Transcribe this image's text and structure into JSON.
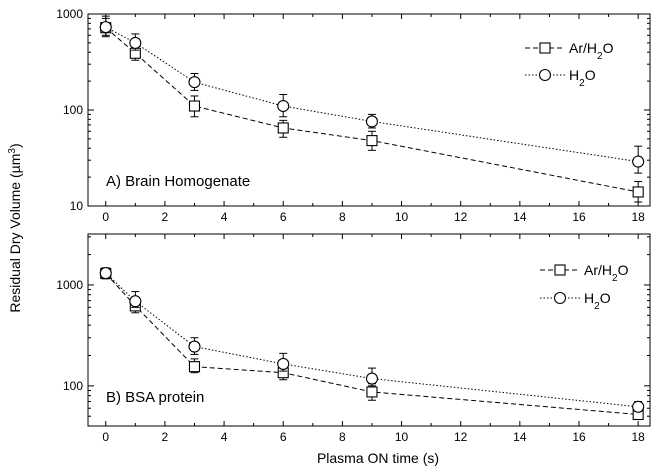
{
  "chart_data": [
    {
      "type": "line",
      "annotation": "A) Brain Homogenate",
      "x": [
        0,
        1,
        3,
        6,
        9,
        18
      ],
      "xlim": [
        -0.6,
        18.4
      ],
      "xticks": [
        0,
        2,
        4,
        6,
        8,
        10,
        12,
        14,
        16,
        18
      ],
      "yscale": "log",
      "ylim": [
        10,
        1000
      ],
      "yticks": [
        10,
        100,
        1000
      ],
      "series": [
        {
          "name": "Ar/H2O",
          "marker": "square",
          "dash": "dashed",
          "values": [
            720,
            390,
            110,
            65,
            48,
            14
          ],
          "err_low": [
            580,
            330,
            85,
            52,
            38,
            11
          ],
          "err_high": [
            950,
            450,
            140,
            78,
            60,
            18
          ]
        },
        {
          "name": "H2O",
          "marker": "circle",
          "dash": "dotted",
          "values": [
            730,
            500,
            195,
            110,
            76,
            29
          ],
          "err_low": [
            600,
            420,
            160,
            85,
            65,
            22
          ],
          "err_high": [
            900,
            620,
            240,
            145,
            90,
            42
          ]
        }
      ],
      "legend_placement": "top-right"
    },
    {
      "type": "line",
      "annotation": "B) BSA protein",
      "x": [
        0,
        1,
        3,
        6,
        9,
        18
      ],
      "xlim": [
        -0.6,
        18.4
      ],
      "xticks": [
        0,
        2,
        4,
        6,
        8,
        10,
        12,
        14,
        16,
        18
      ],
      "yscale": "log",
      "ylim": [
        40,
        3200
      ],
      "yticks": [
        100,
        1000
      ],
      "series": [
        {
          "name": "Ar/H2O",
          "marker": "square",
          "dash": "dashed",
          "values": [
            1300,
            620,
            155,
            135,
            87,
            52
          ],
          "err_low": [
            1150,
            530,
            135,
            115,
            72,
            47
          ],
          "err_high": [
            1450,
            760,
            185,
            170,
            105,
            58
          ]
        },
        {
          "name": "H2O",
          "marker": "circle",
          "dash": "dotted",
          "values": [
            1310,
            690,
            245,
            165,
            118,
            62
          ],
          "err_low": [
            1170,
            600,
            205,
            140,
            100,
            56
          ],
          "err_high": [
            1480,
            860,
            300,
            210,
            150,
            70
          ]
        }
      ],
      "legend_placement": "top-right"
    }
  ],
  "axes": {
    "xlabel": "Plasma ON time (s)",
    "ylabel_prefix": "Residual Dry Volume (",
    "ylabel_unit": "µm",
    "ylabel_sup": "3",
    "ylabel_suffix": ")"
  },
  "legend": {
    "ar_prefix": "Ar/H",
    "h_prefix": "H",
    "sub": "2",
    "suffix": "O"
  }
}
